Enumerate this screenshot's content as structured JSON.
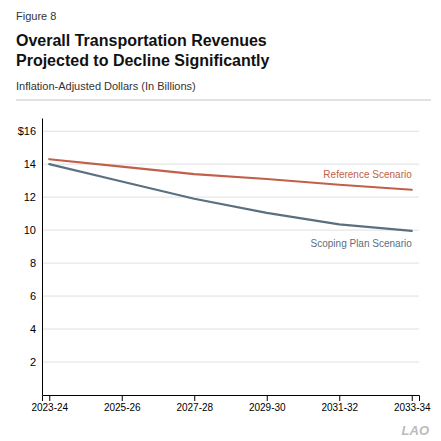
{
  "chart_data": {
    "type": "line",
    "title": [
      "Overall Transportation Revenues",
      "Projected to Decline Significantly"
    ],
    "subtitle": "Inflation-Adjusted Dollars (In Billions)",
    "annotations": [
      "Figure 8",
      "LAO"
    ],
    "categories": [
      "2023-24",
      "2025-26",
      "2027-28",
      "2029-30",
      "2031-32",
      "2033-34"
    ],
    "series": [
      {
        "name": "Reference Scenario",
        "color": "#c0604a",
        "values": [
          14.3,
          13.85,
          13.4,
          13.1,
          12.75,
          12.45
        ]
      },
      {
        "name": "Scoping Plan Scenario",
        "color": "#5a7080",
        "values": [
          14.0,
          12.95,
          11.9,
          11.05,
          10.35,
          9.95
        ]
      }
    ],
    "ylim": [
      0,
      16.8
    ],
    "yticks": [
      2,
      4,
      6,
      8,
      10,
      12,
      14,
      {
        "value": 16,
        "label": "$16"
      }
    ],
    "grid": true
  }
}
